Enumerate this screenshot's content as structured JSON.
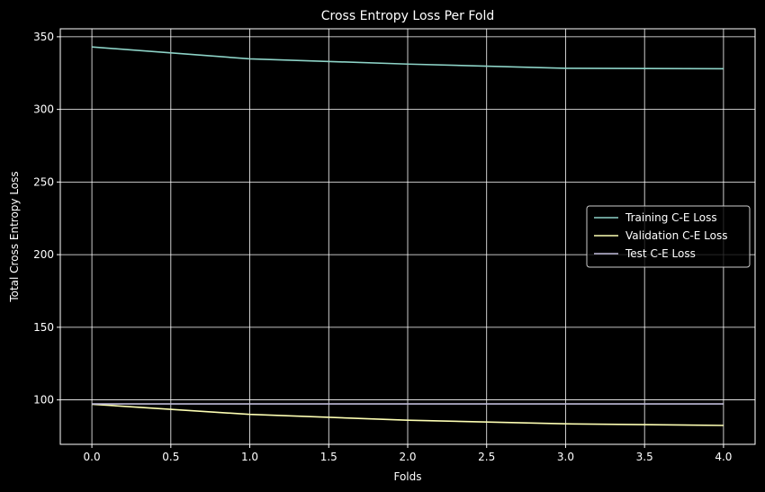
{
  "chart_data": {
    "type": "line",
    "title": "Cross Entropy Loss Per Fold",
    "xlabel": "Folds",
    "ylabel": "Total Cross Entropy Loss",
    "x": [
      0,
      1,
      2,
      3,
      4
    ],
    "xlim": [
      -0.2,
      4.2
    ],
    "ylim": [
      69.4,
      355.5
    ],
    "xticks": [
      "0.0",
      "0.5",
      "1.0",
      "1.5",
      "2.0",
      "2.5",
      "3.0",
      "3.5",
      "4.0"
    ],
    "xtick_values": [
      0,
      0.5,
      1,
      1.5,
      2,
      2.5,
      3,
      3.5,
      4
    ],
    "yticks": [
      "100",
      "150",
      "200",
      "250",
      "300",
      "350"
    ],
    "ytick_values": [
      100,
      150,
      200,
      250,
      300,
      350
    ],
    "grid": true,
    "legend_position": "center-right",
    "background": "#000000",
    "series": [
      {
        "name": "Training C-E Loss",
        "color": "#8dd3c7",
        "values": [
          343.0,
          334.8,
          331.2,
          328.3,
          328.0
        ]
      },
      {
        "name": "Validation C-E Loss",
        "color": "#feffb3",
        "values": [
          97.0,
          90.0,
          86.0,
          83.5,
          82.4
        ]
      },
      {
        "name": "Test C-E Loss",
        "color": "#bfbbd9",
        "values": [
          97.2,
          97.2,
          97.2,
          97.2,
          97.2
        ]
      }
    ]
  }
}
